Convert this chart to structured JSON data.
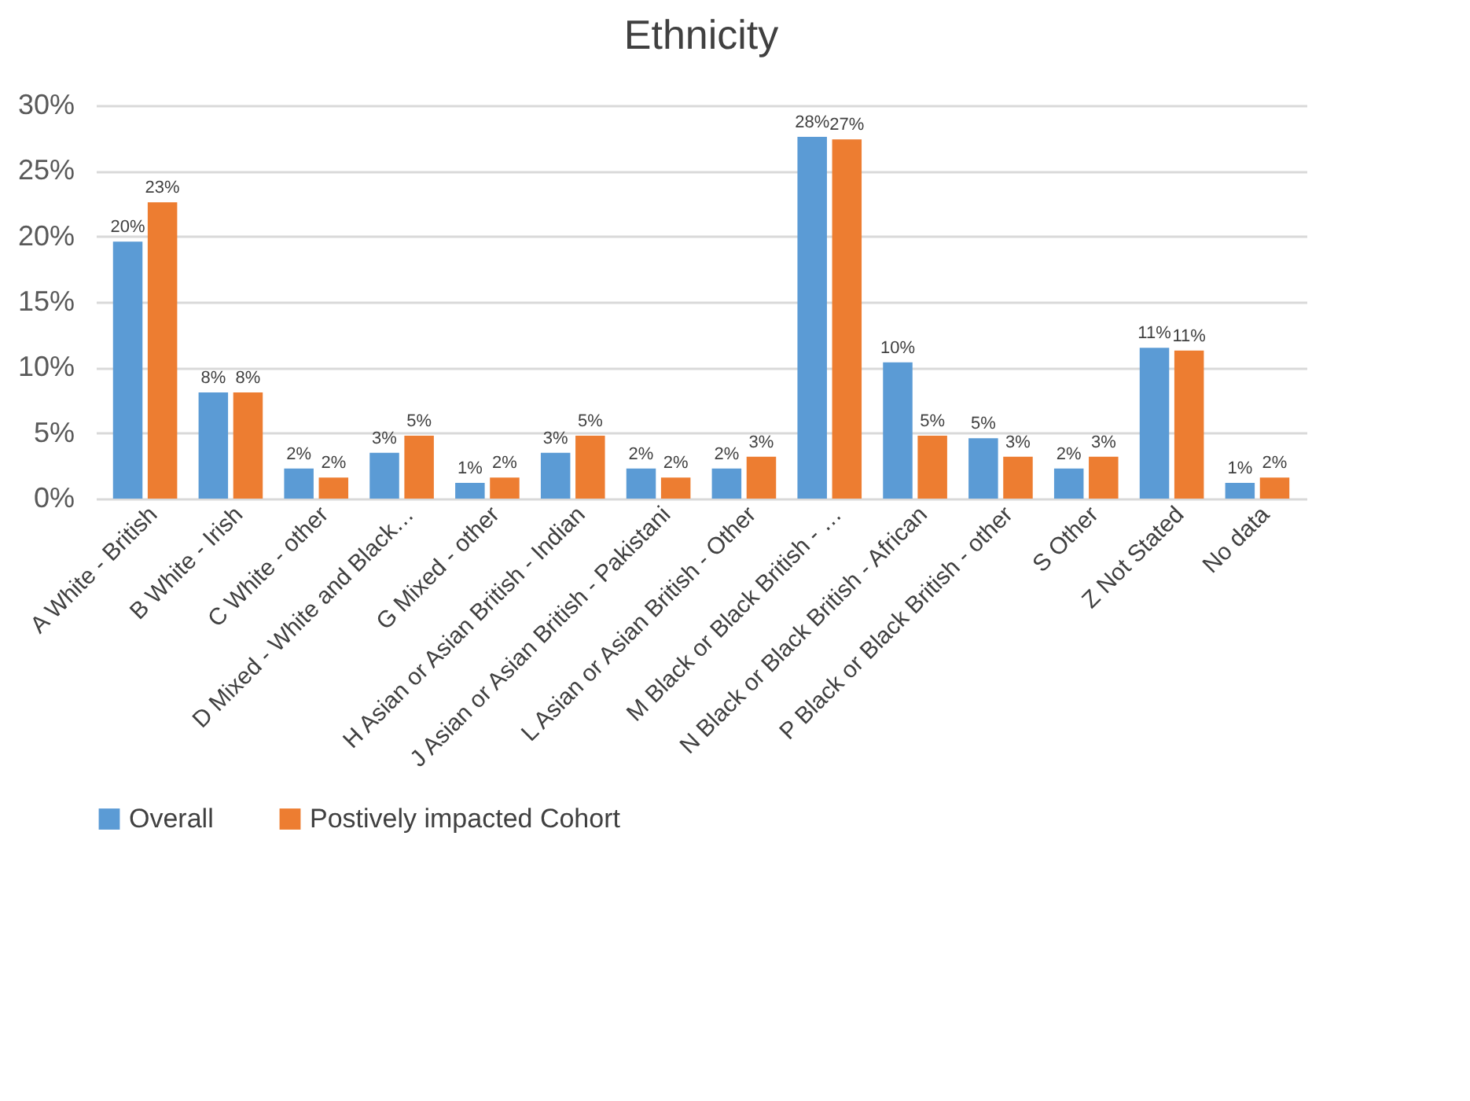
{
  "chart_data": {
    "type": "bar",
    "title": "Ethnicity",
    "categories": [
      "A White - British",
      "B White - Irish",
      "C White - other",
      "D Mixed - White and Black…",
      "G Mixed - other",
      "H Asian or Asian British - Indian",
      "J Asian or Asian British - Pakistani",
      "L Asian or Asian British - Other",
      "M Black or Black British - …",
      "N Black or Black British - African",
      "P Black or Black British - other",
      "S Other",
      "Z Not Stated",
      "No data"
    ],
    "series": [
      {
        "name": "Overall",
        "color": "#5b9bd5",
        "values": [
          19.6,
          8.1,
          2.3,
          3.5,
          1.2,
          3.5,
          2.3,
          2.3,
          27.6,
          10.4,
          4.6,
          2.3,
          11.5,
          1.2
        ],
        "value_labels": [
          "20%",
          "8%",
          "2%",
          "3%",
          "1%",
          "3%",
          "2%",
          "2%",
          "28%",
          "10%",
          "5%",
          "2%",
          "11%",
          "1%"
        ]
      },
      {
        "name": "Postively impacted Cohort",
        "color": "#ed7d31",
        "values": [
          22.6,
          8.1,
          1.6,
          4.8,
          1.6,
          4.8,
          1.6,
          3.2,
          27.4,
          4.8,
          3.2,
          3.2,
          11.3,
          1.6
        ],
        "value_labels": [
          "23%",
          "8%",
          "2%",
          "5%",
          "2%",
          "5%",
          "2%",
          "3%",
          "27%",
          "5%",
          "3%",
          "3%",
          "11%",
          "2%"
        ]
      }
    ],
    "ylim": [
      0,
      30
    ],
    "yticks": [
      {
        "value": 0,
        "label": "0%"
      },
      {
        "value": 5,
        "label": "5%"
      },
      {
        "value": 10,
        "label": "10%"
      },
      {
        "value": 15,
        "label": "15%"
      },
      {
        "value": 20,
        "label": "20%"
      },
      {
        "value": 25,
        "label": "25%"
      },
      {
        "value": 30,
        "label": "30%"
      }
    ],
    "grid": "y",
    "legend": "bottom"
  }
}
